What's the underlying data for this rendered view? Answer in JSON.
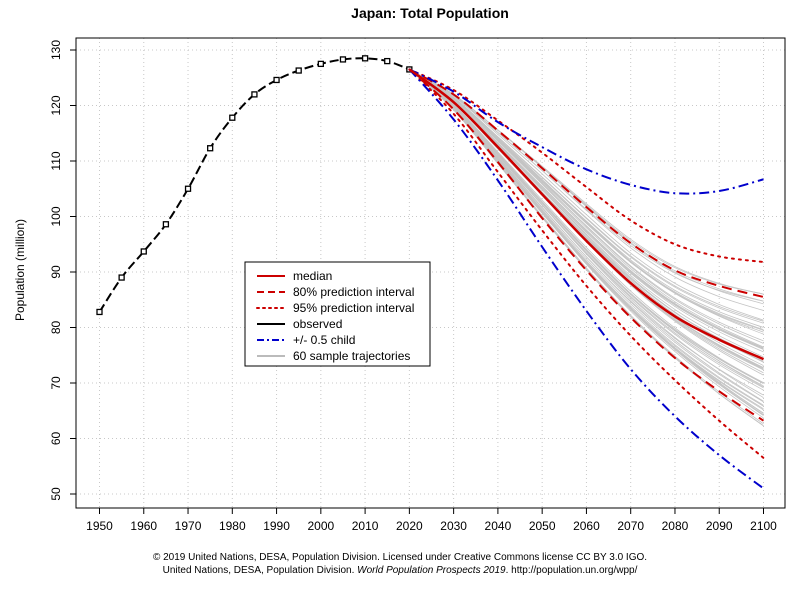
{
  "chart_data": {
    "type": "line",
    "title": "Japan: Total Population",
    "xlabel": "",
    "ylabel": "Population (million)",
    "xlim": [
      1950,
      2100
    ],
    "ylim": [
      50,
      130
    ],
    "xticks": [
      1950,
      1960,
      1970,
      1980,
      1990,
      2000,
      2010,
      2020,
      2030,
      2040,
      2050,
      2060,
      2070,
      2080,
      2090,
      2100
    ],
    "yticks": [
      50,
      60,
      70,
      80,
      90,
      100,
      110,
      120,
      130
    ],
    "grid": true,
    "legend_position": "center-left",
    "legend": [
      {
        "label": "median",
        "color": "#cc0000",
        "style": "solid"
      },
      {
        "label": "80% prediction interval",
        "color": "#cc0000",
        "style": "dashed"
      },
      {
        "label": "95% prediction interval",
        "color": "#cc0000",
        "style": "dotted"
      },
      {
        "label": "observed",
        "color": "#000000",
        "style": "solid"
      },
      {
        "label": "+/- 0.5 child",
        "color": "#0000cc",
        "style": "dashdot"
      },
      {
        "label": "60 sample trajectories",
        "color": "#bbbbbb",
        "style": "solid"
      }
    ],
    "observed": {
      "x": [
        1950,
        1955,
        1960,
        1965,
        1970,
        1975,
        1980,
        1985,
        1990,
        1995,
        2000,
        2005,
        2010,
        2015,
        2020
      ],
      "y": [
        82.8,
        89.0,
        93.7,
        98.6,
        105.0,
        112.3,
        117.8,
        122.0,
        124.6,
        126.3,
        127.5,
        128.3,
        128.5,
        128.0,
        126.5
      ]
    },
    "projection_x": [
      2020,
      2030,
      2040,
      2050,
      2060,
      2070,
      2080,
      2090,
      2100
    ],
    "median": [
      126.5,
      120.6,
      112.5,
      104.0,
      95.6,
      88.0,
      82.0,
      77.8,
      74.3
    ],
    "pi80_upper": [
      126.5,
      122.0,
      115.5,
      108.7,
      101.7,
      95.2,
      90.3,
      87.5,
      85.5
    ],
    "pi80_lower": [
      126.5,
      119.3,
      109.8,
      99.7,
      90.3,
      81.8,
      74.5,
      68.5,
      63.2
    ],
    "pi95_upper": [
      126.5,
      122.8,
      117.3,
      111.5,
      105.3,
      99.3,
      95.0,
      92.8,
      91.8
    ],
    "pi95_lower": [
      126.5,
      118.5,
      108.0,
      97.5,
      87.5,
      78.5,
      70.5,
      63.2,
      56.5
    ],
    "child_plus": [
      126.5,
      122.5,
      117.0,
      112.5,
      108.5,
      105.7,
      104.2,
      104.6,
      106.7
    ],
    "child_minus": [
      126.5,
      117.5,
      106.5,
      94.5,
      83.0,
      72.5,
      64.0,
      57.0,
      51.0
    ],
    "sample_trajectories_count": 60
  },
  "footer": {
    "line1": "© 2019 United Nations, DESA, Population Division. Licensed under Creative Commons license CC BY 3.0 IGO.",
    "line2_pre": "United Nations, DESA, Population Division. ",
    "line2_em": "World Population Prospects 2019",
    "line2_post": ". http://population.un.org/wpp/"
  }
}
